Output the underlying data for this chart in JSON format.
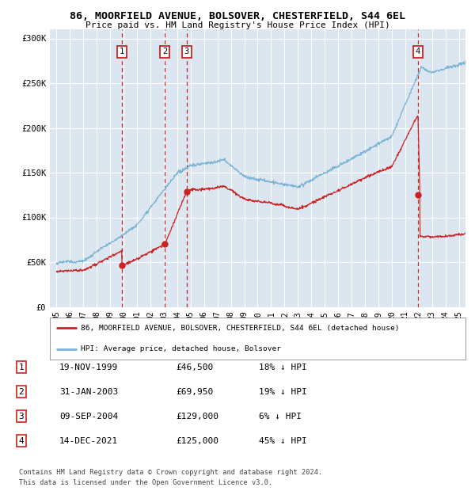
{
  "title": "86, MOORFIELD AVENUE, BOLSOVER, CHESTERFIELD, S44 6EL",
  "subtitle": "Price paid vs. HM Land Registry's House Price Index (HPI)",
  "ylabel_ticks": [
    "£0",
    "£50K",
    "£100K",
    "£150K",
    "£200K",
    "£250K",
    "£300K"
  ],
  "ylabel_values": [
    0,
    50000,
    100000,
    150000,
    200000,
    250000,
    300000
  ],
  "ylim": [
    0,
    310000
  ],
  "xlim_start": 1994.5,
  "xlim_end": 2025.5,
  "plot_bg_color": "#dce6f1",
  "grid_color": "#ffffff",
  "transactions": [
    {
      "num": 1,
      "date_num": 1999.88,
      "price": 46500
    },
    {
      "num": 2,
      "date_num": 2003.08,
      "price": 69950
    },
    {
      "num": 3,
      "date_num": 2004.69,
      "price": 129000
    },
    {
      "num": 4,
      "date_num": 2021.96,
      "price": 125000
    }
  ],
  "hpi_color": "#7ab3d4",
  "price_color": "#cc2222",
  "legend_label_price": "86, MOORFIELD AVENUE, BOLSOVER, CHESTERFIELD, S44 6EL (detached house)",
  "legend_label_hpi": "HPI: Average price, detached house, Bolsover",
  "footnote1": "Contains HM Land Registry data © Crown copyright and database right 2024.",
  "footnote2": "This data is licensed under the Open Government Licence v3.0.",
  "table_rows": [
    [
      "1",
      "19-NOV-1999",
      "£46,500",
      "18% ↓ HPI"
    ],
    [
      "2",
      "31-JAN-2003",
      "£69,950",
      "19% ↓ HPI"
    ],
    [
      "3",
      "09-SEP-2004",
      "£129,000",
      "6% ↓ HPI"
    ],
    [
      "4",
      "14-DEC-2021",
      "£125,000",
      "45% ↓ HPI"
    ]
  ]
}
